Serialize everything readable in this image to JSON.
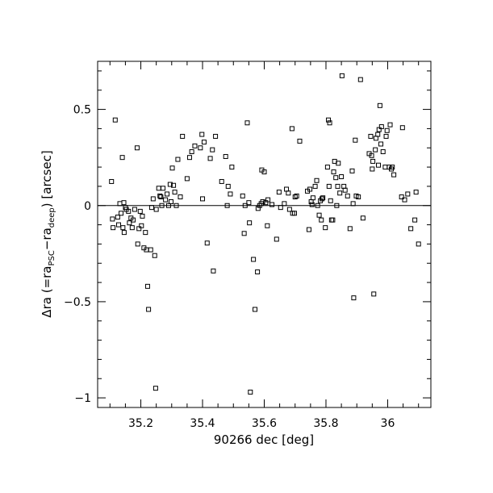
{
  "chart_data": {
    "type": "scatter",
    "title": "",
    "xlabel": "90266 dec [deg]",
    "ylabel_parts": {
      "prefix": "Δra (=ra",
      "sub1": "PSC",
      "mid": "−ra",
      "sub2": "deep",
      "suffix": ") [arcsec]"
    },
    "xlim": [
      35.06,
      36.14
    ],
    "ylim": [
      -1.05,
      0.75
    ],
    "x_ticks": [
      {
        "value": 35.2,
        "label": "35.2"
      },
      {
        "value": 35.4,
        "label": "35.4"
      },
      {
        "value": 35.6,
        "label": "35.6"
      },
      {
        "value": 35.8,
        "label": "35.8"
      },
      {
        "value": 36.0,
        "label": "36"
      }
    ],
    "y_ticks": [
      {
        "value": 0.5,
        "label": "0.5"
      },
      {
        "value": 0.0,
        "label": "0"
      },
      {
        "value": -0.5,
        "label": "−0.5"
      },
      {
        "value": -1.0,
        "label": "−1"
      }
    ],
    "zero_line": true,
    "grid": false,
    "points": [
      [
        35.105,
        0.125
      ],
      [
        35.108,
        -0.07
      ],
      [
        35.11,
        -0.115
      ],
      [
        35.117,
        0.445
      ],
      [
        35.125,
        -0.06
      ],
      [
        35.128,
        -0.1
      ],
      [
        35.132,
        0.01
      ],
      [
        35.136,
        -0.04
      ],
      [
        35.14,
        0.25
      ],
      [
        35.142,
        -0.115
      ],
      [
        35.145,
        0.015
      ],
      [
        35.146,
        -0.14
      ],
      [
        35.15,
        -0.01
      ],
      [
        35.153,
        -0.02
      ],
      [
        35.16,
        -0.03
      ],
      [
        35.163,
        -0.09
      ],
      [
        35.168,
        -0.065
      ],
      [
        35.172,
        -0.115
      ],
      [
        35.175,
        -0.075
      ],
      [
        35.18,
        -0.02
      ],
      [
        35.188,
        0.3
      ],
      [
        35.19,
        -0.2
      ],
      [
        35.194,
        -0.12
      ],
      [
        35.198,
        -0.03
      ],
      [
        35.202,
        -0.105
      ],
      [
        35.205,
        -0.055
      ],
      [
        35.21,
        -0.22
      ],
      [
        35.215,
        -0.14
      ],
      [
        35.218,
        -0.23
      ],
      [
        35.222,
        -0.42
      ],
      [
        35.225,
        -0.54
      ],
      [
        35.232,
        -0.23
      ],
      [
        35.235,
        -0.01
      ],
      [
        35.24,
        0.035
      ],
      [
        35.245,
        -0.26
      ],
      [
        35.248,
        -0.95
      ],
      [
        35.25,
        -0.02
      ],
      [
        35.258,
        0.09
      ],
      [
        35.262,
        0.05
      ],
      [
        35.265,
        0.045
      ],
      [
        35.268,
        0.0
      ],
      [
        35.272,
        0.09
      ],
      [
        35.28,
        0.03
      ],
      [
        35.285,
        0.06
      ],
      [
        35.29,
        0.0
      ],
      [
        35.295,
        0.11
      ],
      [
        35.298,
        0.02
      ],
      [
        35.302,
        0.195
      ],
      [
        35.306,
        0.105
      ],
      [
        35.31,
        0.07
      ],
      [
        35.315,
        0.0
      ],
      [
        35.32,
        0.24
      ],
      [
        35.328,
        0.045
      ],
      [
        35.335,
        0.36
      ],
      [
        35.35,
        0.14
      ],
      [
        35.358,
        0.25
      ],
      [
        35.365,
        0.28
      ],
      [
        35.375,
        0.31
      ],
      [
        35.393,
        0.3
      ],
      [
        35.398,
        0.37
      ],
      [
        35.4,
        0.035
      ],
      [
        35.405,
        0.33
      ],
      [
        35.415,
        -0.195
      ],
      [
        35.425,
        0.245
      ],
      [
        35.432,
        0.29
      ],
      [
        35.435,
        -0.34
      ],
      [
        35.442,
        0.36
      ],
      [
        35.462,
        0.125
      ],
      [
        35.475,
        0.255
      ],
      [
        35.48,
        0.0
      ],
      [
        35.483,
        0.1
      ],
      [
        35.49,
        0.06
      ],
      [
        35.495,
        0.2
      ],
      [
        35.53,
        0.05
      ],
      [
        35.535,
        -0.145
      ],
      [
        35.538,
        0.0
      ],
      [
        35.545,
        0.43
      ],
      [
        35.55,
        0.015
      ],
      [
        35.552,
        -0.09
      ],
      [
        35.555,
        -0.97
      ],
      [
        35.565,
        -0.28
      ],
      [
        35.57,
        -0.54
      ],
      [
        35.578,
        -0.345
      ],
      [
        35.58,
        -0.015
      ],
      [
        35.585,
        0.0
      ],
      [
        35.59,
        0.01
      ],
      [
        35.592,
        0.185
      ],
      [
        35.595,
        0.02
      ],
      [
        35.6,
        0.175
      ],
      [
        35.605,
        0.015
      ],
      [
        35.61,
        -0.105
      ],
      [
        35.612,
        0.03
      ],
      [
        35.625,
        0.005
      ],
      [
        35.64,
        -0.175
      ],
      [
        35.648,
        0.07
      ],
      [
        35.653,
        -0.01
      ],
      [
        35.665,
        0.01
      ],
      [
        35.672,
        0.085
      ],
      [
        35.678,
        0.065
      ],
      [
        35.682,
        -0.02
      ],
      [
        35.69,
        0.4
      ],
      [
        35.692,
        -0.04
      ],
      [
        35.698,
        -0.04
      ],
      [
        35.7,
        0.045
      ],
      [
        35.705,
        0.05
      ],
      [
        35.715,
        0.335
      ],
      [
        35.74,
        0.075
      ],
      [
        35.745,
        -0.125
      ],
      [
        35.748,
        0.085
      ],
      [
        35.752,
        0.02
      ],
      [
        35.755,
        0.005
      ],
      [
        35.758,
        0.04
      ],
      [
        35.765,
        0.1
      ],
      [
        35.77,
        0.13
      ],
      [
        35.773,
        0.0
      ],
      [
        35.778,
        -0.05
      ],
      [
        35.782,
        0.025
      ],
      [
        35.785,
        -0.075
      ],
      [
        35.787,
        0.035
      ],
      [
        35.79,
        0.04
      ],
      [
        35.798,
        -0.115
      ],
      [
        35.805,
        0.2
      ],
      [
        35.808,
        0.445
      ],
      [
        35.81,
        0.1
      ],
      [
        35.812,
        0.43
      ],
      [
        35.815,
        0.025
      ],
      [
        35.818,
        -0.075
      ],
      [
        35.822,
        -0.075
      ],
      [
        35.825,
        0.175
      ],
      [
        35.828,
        0.23
      ],
      [
        35.832,
        0.145
      ],
      [
        35.835,
        0.0
      ],
      [
        35.838,
        0.1
      ],
      [
        35.84,
        0.22
      ],
      [
        35.845,
        0.065
      ],
      [
        35.85,
        0.15
      ],
      [
        35.852,
        0.675
      ],
      [
        35.858,
        0.1
      ],
      [
        35.862,
        0.08
      ],
      [
        35.87,
        0.05
      ],
      [
        35.878,
        -0.12
      ],
      [
        35.885,
        0.18
      ],
      [
        35.888,
        0.01
      ],
      [
        35.89,
        -0.48
      ],
      [
        35.895,
        0.34
      ],
      [
        35.898,
        0.05
      ],
      [
        35.905,
        0.045
      ],
      [
        35.912,
        0.655
      ],
      [
        35.92,
        -0.065
      ],
      [
        35.94,
        0.27
      ],
      [
        35.945,
        0.36
      ],
      [
        35.948,
        0.26
      ],
      [
        35.95,
        0.19
      ],
      [
        35.952,
        0.23
      ],
      [
        35.955,
        -0.46
      ],
      [
        35.96,
        0.29
      ],
      [
        35.962,
        0.35
      ],
      [
        35.968,
        0.37
      ],
      [
        35.97,
        0.21
      ],
      [
        35.972,
        0.395
      ],
      [
        35.975,
        0.52
      ],
      [
        35.978,
        0.32
      ],
      [
        35.98,
        0.41
      ],
      [
        35.985,
        0.28
      ],
      [
        35.992,
        0.2
      ],
      [
        35.995,
        0.36
      ],
      [
        35.998,
        0.39
      ],
      [
        36.005,
        0.2
      ],
      [
        36.008,
        0.42
      ],
      [
        36.012,
        0.19
      ],
      [
        36.015,
        0.2
      ],
      [
        36.02,
        0.16
      ],
      [
        36.045,
        0.045
      ],
      [
        36.048,
        0.405
      ],
      [
        36.055,
        0.03
      ],
      [
        36.065,
        0.06
      ],
      [
        36.075,
        -0.12
      ],
      [
        36.088,
        -0.075
      ],
      [
        36.092,
        0.07
      ],
      [
        36.1,
        -0.2
      ]
    ]
  }
}
